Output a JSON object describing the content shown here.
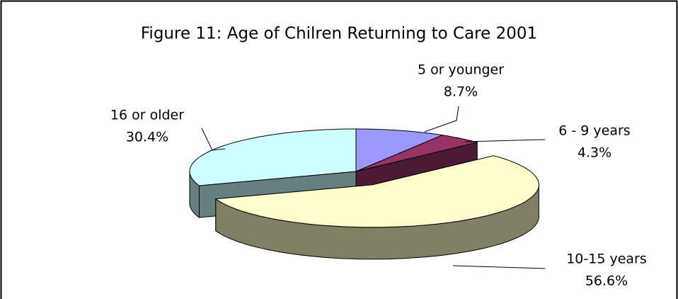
{
  "chart_data": {
    "type": "pie3d",
    "title": "Figure 11: Age of Chilren Returning to Care 2001",
    "categories": [
      "5 or younger",
      "6 - 9 years",
      "10-15 years",
      "16 or older"
    ],
    "values": [
      8.7,
      4.3,
      56.6,
      30.4
    ],
    "value_labels": [
      "8.7%",
      "4.3%",
      "56.6%",
      "30.4%"
    ],
    "colors": [
      "#9999ff",
      "#993366",
      "#ffffcc",
      "#ccffff"
    ]
  }
}
